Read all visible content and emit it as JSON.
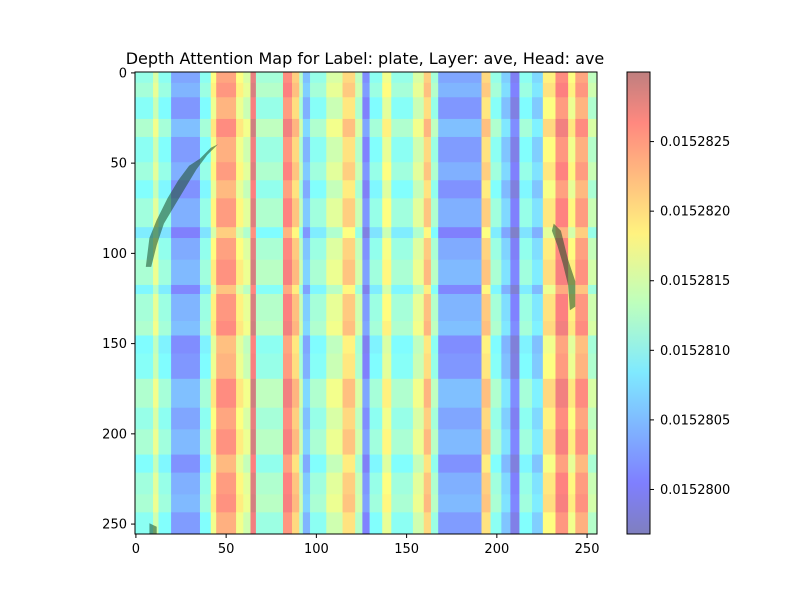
{
  "chart_data": {
    "type": "heatmap",
    "title": "Depth Attention Map for Label: plate, Layer: ave, Head: ave",
    "xlabel": "",
    "ylabel": "",
    "x_ticks": [
      0,
      50,
      100,
      150,
      200,
      250
    ],
    "y_ticks": [
      0,
      50,
      100,
      150,
      200,
      250
    ],
    "xlim": [
      0,
      255
    ],
    "ylim": [
      255,
      0
    ],
    "colormap": "jet",
    "alpha": 0.5,
    "colorbar": {
      "vmin": 0.01527968,
      "vmax": 0.015283,
      "ticks": [
        0.01528,
        0.0152805,
        0.015281,
        0.0152815,
        0.015282,
        0.0152825
      ],
      "tick_labels": [
        "0.0152800",
        "0.0152805",
        "0.0152810",
        "0.0152815",
        "0.0152820",
        "0.0152825"
      ]
    },
    "column_pattern": [
      {
        "x": [
          0,
          10
        ],
        "level": 0.42
      },
      {
        "x": [
          10,
          13
        ],
        "level": 0.55
      },
      {
        "x": [
          13,
          20
        ],
        "level": 0.4
      },
      {
        "x": [
          20,
          36
        ],
        "level": 0.2
      },
      {
        "x": [
          36,
          42
        ],
        "level": 0.4
      },
      {
        "x": [
          42,
          45
        ],
        "level": 0.62
      },
      {
        "x": [
          45,
          56
        ],
        "level": 0.8
      },
      {
        "x": [
          56,
          60
        ],
        "level": 0.62
      },
      {
        "x": [
          60,
          64
        ],
        "level": 0.55
      },
      {
        "x": [
          64,
          67
        ],
        "level": 0.92
      },
      {
        "x": [
          67,
          82
        ],
        "level": 0.45
      },
      {
        "x": [
          82,
          87
        ],
        "level": 0.85
      },
      {
        "x": [
          87,
          91
        ],
        "level": 0.72
      },
      {
        "x": [
          91,
          93
        ],
        "level": 0.48
      },
      {
        "x": [
          93,
          97
        ],
        "level": 0.25
      },
      {
        "x": [
          97,
          106
        ],
        "level": 0.42
      },
      {
        "x": [
          106,
          115
        ],
        "level": 0.55
      },
      {
        "x": [
          115,
          122
        ],
        "level": 0.7
      },
      {
        "x": [
          122,
          126
        ],
        "level": 0.5
      },
      {
        "x": [
          126,
          130
        ],
        "level": 0.15
      },
      {
        "x": [
          130,
          137
        ],
        "level": 0.4
      },
      {
        "x": [
          137,
          142
        ],
        "level": 0.6
      },
      {
        "x": [
          142,
          154
        ],
        "level": 0.42
      },
      {
        "x": [
          154,
          160
        ],
        "level": 0.55
      },
      {
        "x": [
          160,
          164
        ],
        "level": 0.72
      },
      {
        "x": [
          164,
          168
        ],
        "level": 0.45
      },
      {
        "x": [
          168,
          192
        ],
        "level": 0.2
      },
      {
        "x": [
          192,
          197
        ],
        "level": 0.7
      },
      {
        "x": [
          197,
          203
        ],
        "level": 0.42
      },
      {
        "x": [
          203,
          208
        ],
        "level": 0.28
      },
      {
        "x": [
          208,
          213
        ],
        "level": 0.1
      },
      {
        "x": [
          213,
          220
        ],
        "level": 0.4
      },
      {
        "x": [
          220,
          226
        ],
        "level": 0.3
      },
      {
        "x": [
          226,
          233
        ],
        "level": 0.65
      },
      {
        "x": [
          233,
          240
        ],
        "level": 0.85
      },
      {
        "x": [
          240,
          244
        ],
        "level": 0.62
      },
      {
        "x": [
          244,
          251
        ],
        "level": 0.8
      },
      {
        "x": [
          251,
          256
        ],
        "level": 0.5
      }
    ],
    "row_modulation": [
      {
        "y": [
          0,
          6
        ],
        "delta": 0.0
      },
      {
        "y": [
          6,
          14
        ],
        "delta": 0.03
      },
      {
        "y": [
          14,
          26
        ],
        "delta": -0.03
      },
      {
        "y": [
          26,
          36
        ],
        "delta": 0.05
      },
      {
        "y": [
          36,
          50
        ],
        "delta": -0.02
      },
      {
        "y": [
          50,
          60
        ],
        "delta": 0.02
      },
      {
        "y": [
          60,
          70
        ],
        "delta": -0.04
      },
      {
        "y": [
          70,
          86
        ],
        "delta": 0.02
      },
      {
        "y": [
          86,
          92
        ],
        "delta": -0.08
      },
      {
        "y": [
          92,
          104
        ],
        "delta": 0.01
      },
      {
        "y": [
          104,
          118
        ],
        "delta": 0.04
      },
      {
        "y": [
          118,
          123
        ],
        "delta": -0.06
      },
      {
        "y": [
          123,
          138
        ],
        "delta": 0.03
      },
      {
        "y": [
          138,
          146
        ],
        "delta": 0.05
      },
      {
        "y": [
          146,
          156
        ],
        "delta": -0.05
      },
      {
        "y": [
          156,
          170
        ],
        "delta": -0.03
      },
      {
        "y": [
          170,
          186
        ],
        "delta": 0.05
      },
      {
        "y": [
          186,
          198
        ],
        "delta": 0.0
      },
      {
        "y": [
          198,
          212
        ],
        "delta": 0.04
      },
      {
        "y": [
          212,
          222
        ],
        "delta": -0.04
      },
      {
        "y": [
          222,
          234
        ],
        "delta": 0.02
      },
      {
        "y": [
          234,
          244
        ],
        "delta": 0.04
      },
      {
        "y": [
          244,
          256
        ],
        "delta": -0.02
      }
    ],
    "overlay_mask": {
      "color": "#1a4a28",
      "regions": [
        {
          "points": [
            [
              6,
              108
            ],
            [
              8,
              92
            ],
            [
              12,
              82
            ],
            [
              18,
              70
            ],
            [
              24,
              60
            ],
            [
              30,
              52
            ],
            [
              36,
              48
            ],
            [
              42,
              42
            ],
            [
              46,
              40
            ],
            [
              40,
              46
            ],
            [
              34,
              54
            ],
            [
              28,
              64
            ],
            [
              22,
              74
            ],
            [
              16,
              84
            ],
            [
              12,
              96
            ],
            [
              9,
              108
            ]
          ]
        },
        {
          "points": [
            [
              232,
              84
            ],
            [
              236,
              88
            ],
            [
              238,
              96
            ],
            [
              240,
              104
            ],
            [
              242,
              110
            ],
            [
              244,
              116
            ],
            [
              244,
              130
            ],
            [
              241,
              132
            ],
            [
              240,
              118
            ],
            [
              237,
              106
            ],
            [
              234,
              96
            ],
            [
              231,
              88
            ]
          ]
        },
        {
          "points": [
            [
              8,
              250
            ],
            [
              12,
              252
            ],
            [
              12,
              256
            ],
            [
              8,
              256
            ]
          ]
        }
      ]
    }
  }
}
